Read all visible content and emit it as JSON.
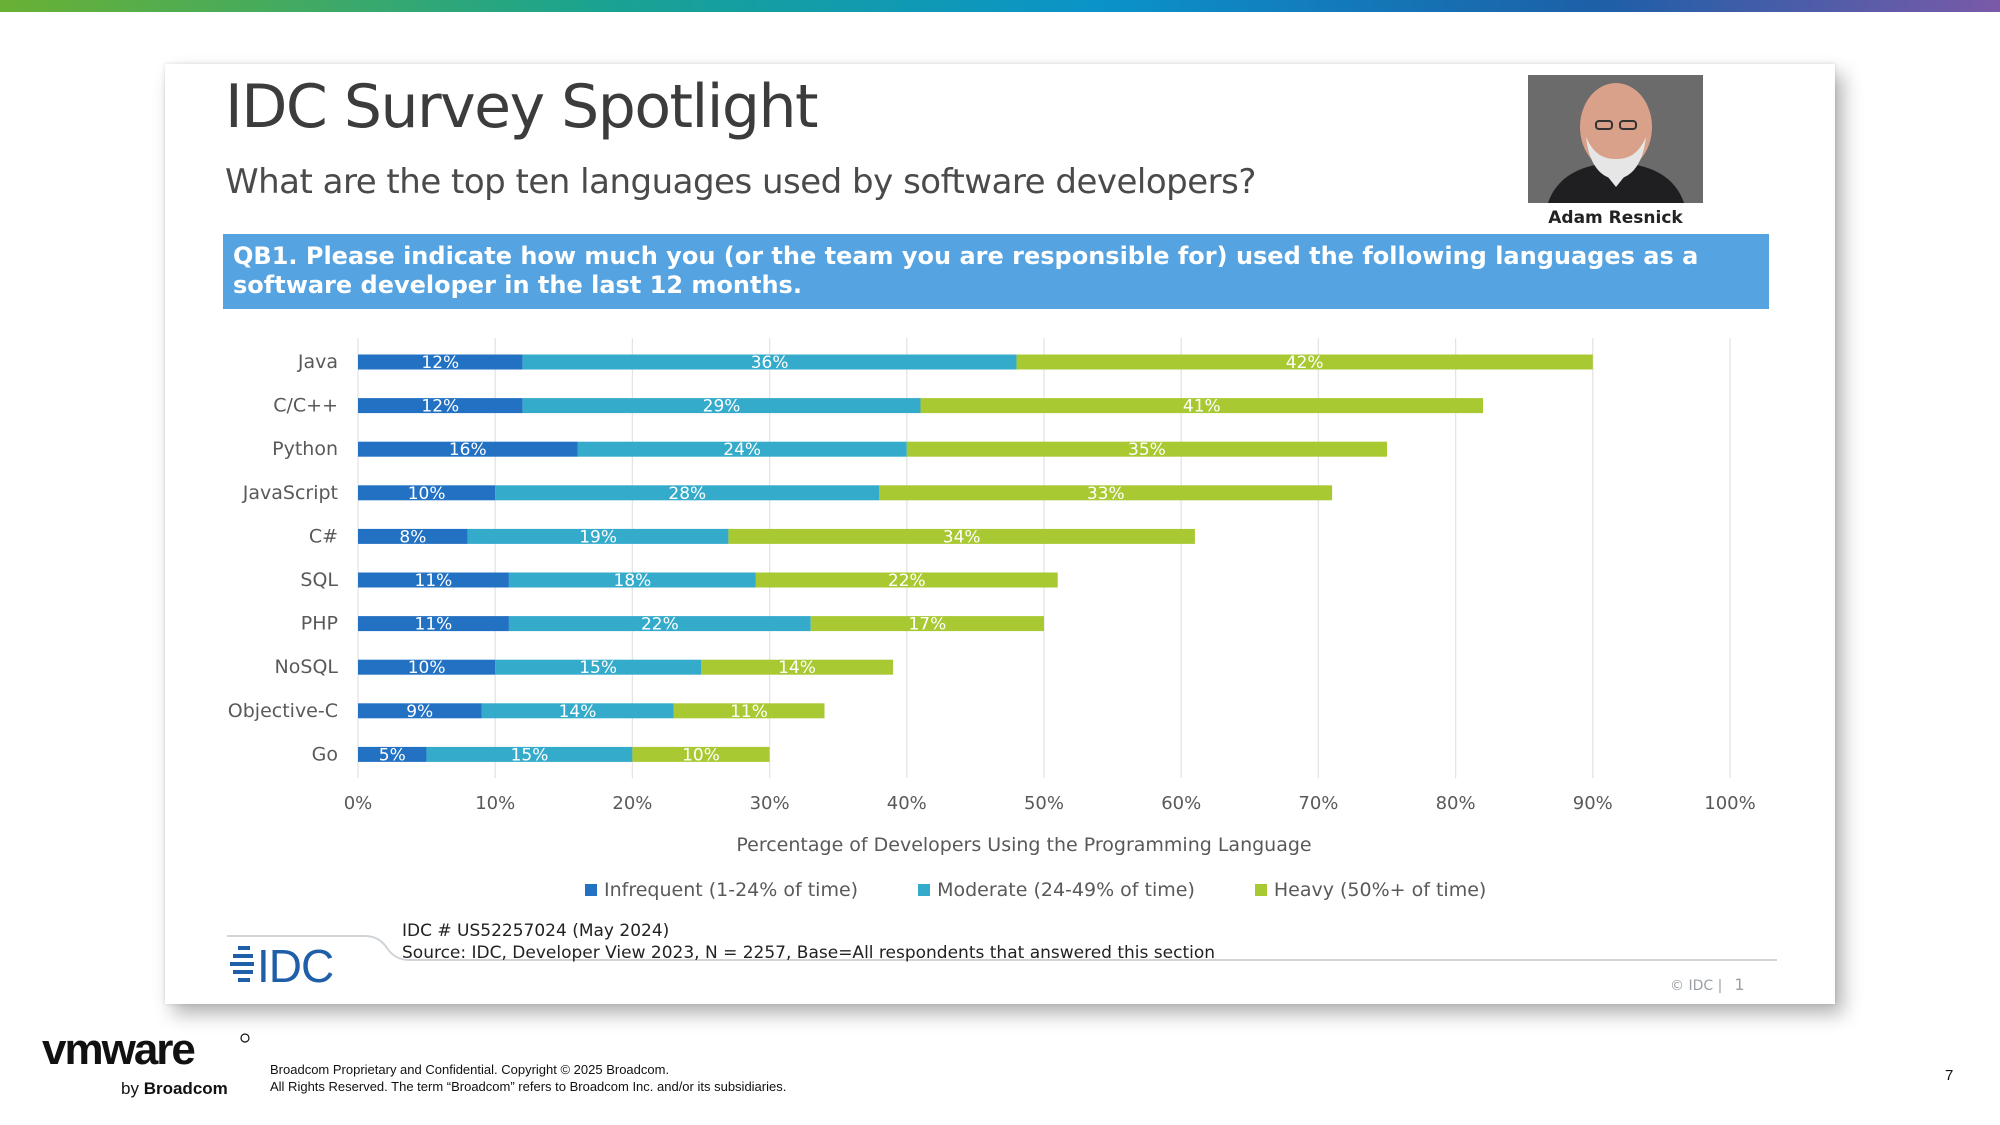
{
  "slide": {
    "title": "IDC Survey Spotlight",
    "subtitle": "What are the top ten languages used by software developers?",
    "analyst_name": "Adam Resnick",
    "question": "QB1. Please indicate how much you (or the team you are responsible for) used the following languages as a software developer in the last 12 months.",
    "idc_number": "IDC # US52257024 (May 2024)",
    "source": "Source: IDC, Developer View 2023, N = 2257, Base=All respondents that answered this section",
    "idc_copyright": "© IDC |",
    "idc_page": "1",
    "idc_logo_text": "IDC"
  },
  "footer": {
    "brand": "vmware",
    "brand_suffix_by": "by",
    "brand_suffix_name": "Broadcom",
    "legal_line1": "Broadcom Proprietary and Confidential. Copyright © 2025 Broadcom.",
    "legal_line2": "All Rights Reserved. The term “Broadcom” refers to Broadcom Inc. and/or its subsidiaries.",
    "page_number": "7"
  },
  "colors": {
    "infrequent": "#2271c3",
    "moderate": "#35abcb",
    "heavy": "#a8c932",
    "question_bg": "#55a3e0"
  },
  "chart_data": {
    "type": "bar",
    "orientation": "horizontal",
    "stacked": true,
    "categories": [
      "Java",
      "C/C++",
      "Python",
      "JavaScript",
      "C#",
      "SQL",
      "PHP",
      "NoSQL",
      "Objective-C",
      "Go"
    ],
    "series": [
      {
        "name": "Infrequent (1-24% of time)",
        "values": [
          12,
          12,
          16,
          10,
          8,
          11,
          11,
          10,
          9,
          5
        ]
      },
      {
        "name": "Moderate (24-49% of time)",
        "values": [
          36,
          29,
          24,
          28,
          19,
          18,
          22,
          15,
          14,
          15
        ]
      },
      {
        "name": "Heavy (50%+ of time)",
        "values": [
          42,
          41,
          35,
          33,
          34,
          22,
          17,
          14,
          11,
          10
        ]
      }
    ],
    "xlabel": "Percentage of Developers Using the Programming Language",
    "xlim": [
      0,
      100
    ],
    "xticks": [
      "0%",
      "10%",
      "20%",
      "30%",
      "40%",
      "50%",
      "60%",
      "70%",
      "80%",
      "90%",
      "100%"
    ],
    "grid": true,
    "legend_position": "bottom"
  }
}
